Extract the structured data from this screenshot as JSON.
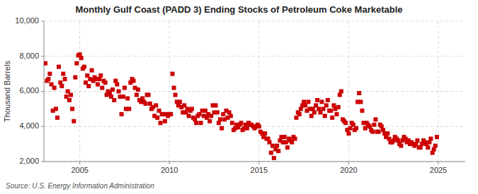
{
  "chart_data": {
    "type": "scatter",
    "title": "Monthly Gulf Coast (PADD 3) Ending Stocks of Petroleum Coke Marketable",
    "ylabel": "Thousand Barrels",
    "annotations": [
      "Source: U.S. Energy Information Administration"
    ],
    "color": "#cc0000",
    "marker": "square",
    "grid": true,
    "xlim": [
      2003.0,
      2026.5
    ],
    "xticks": [
      2005,
      2010,
      2015,
      2020,
      2025
    ],
    "ylim": [
      2000,
      10000
    ],
    "yticks": [
      {
        "value": 2000,
        "label": "2,000"
      },
      {
        "value": 4000,
        "label": "4,000"
      },
      {
        "value": 6000,
        "label": "6,000"
      },
      {
        "value": 8000,
        "label": "8,000"
      },
      {
        "value": 10000,
        "label": "10,000"
      }
    ],
    "x": [
      2003.08,
      2003.17,
      2003.25,
      2003.33,
      2003.42,
      2003.5,
      2003.58,
      2003.67,
      2003.75,
      2003.83,
      2003.92,
      2004.0,
      2004.08,
      2004.17,
      2004.25,
      2004.33,
      2004.42,
      2004.5,
      2004.58,
      2004.67,
      2004.75,
      2004.83,
      2004.92,
      2005.0,
      2005.08,
      2005.17,
      2005.25,
      2005.33,
      2005.42,
      2005.5,
      2005.58,
      2005.67,
      2005.75,
      2005.83,
      2005.92,
      2006.0,
      2006.08,
      2006.17,
      2006.25,
      2006.33,
      2006.42,
      2006.5,
      2006.58,
      2006.67,
      2006.75,
      2006.83,
      2006.92,
      2007.0,
      2007.08,
      2007.17,
      2007.25,
      2007.33,
      2007.42,
      2007.5,
      2007.58,
      2007.67,
      2007.75,
      2007.83,
      2007.92,
      2008.0,
      2008.08,
      2008.17,
      2008.25,
      2008.33,
      2008.42,
      2008.5,
      2008.58,
      2008.67,
      2008.75,
      2008.83,
      2008.92,
      2009.0,
      2009.08,
      2009.17,
      2009.25,
      2009.33,
      2009.42,
      2009.5,
      2009.58,
      2009.67,
      2009.75,
      2009.83,
      2009.92,
      2010.0,
      2010.08,
      2010.17,
      2010.25,
      2010.33,
      2010.42,
      2010.5,
      2010.58,
      2010.67,
      2010.75,
      2010.83,
      2010.92,
      2011.0,
      2011.08,
      2011.17,
      2011.25,
      2011.33,
      2011.42,
      2011.5,
      2011.58,
      2011.67,
      2011.75,
      2011.83,
      2011.92,
      2012.0,
      2012.08,
      2012.17,
      2012.25,
      2012.33,
      2012.42,
      2012.5,
      2012.58,
      2012.67,
      2012.75,
      2012.83,
      2012.92,
      2013.0,
      2013.08,
      2013.17,
      2013.25,
      2013.33,
      2013.42,
      2013.5,
      2013.58,
      2013.67,
      2013.75,
      2013.83,
      2013.92,
      2014.0,
      2014.08,
      2014.17,
      2014.25,
      2014.33,
      2014.42,
      2014.5,
      2014.58,
      2014.67,
      2014.75,
      2014.83,
      2014.92,
      2015.0,
      2015.08,
      2015.17,
      2015.25,
      2015.33,
      2015.42,
      2015.5,
      2015.58,
      2015.67,
      2015.75,
      2015.83,
      2015.92,
      2016.0,
      2016.08,
      2016.17,
      2016.25,
      2016.33,
      2016.42,
      2016.5,
      2016.58,
      2016.67,
      2016.75,
      2016.83,
      2016.92,
      2017.0,
      2017.08,
      2017.17,
      2017.25,
      2017.33,
      2017.42,
      2017.5,
      2017.58,
      2017.67,
      2017.75,
      2017.83,
      2017.92,
      2018.0,
      2018.08,
      2018.17,
      2018.25,
      2018.33,
      2018.42,
      2018.5,
      2018.58,
      2018.67,
      2018.75,
      2018.83,
      2018.92,
      2019.0,
      2019.08,
      2019.17,
      2019.25,
      2019.33,
      2019.42,
      2019.5,
      2019.58,
      2019.67,
      2019.75,
      2019.83,
      2019.92,
      2020.0,
      2020.08,
      2020.17,
      2020.25,
      2020.33,
      2020.42,
      2020.5,
      2020.58,
      2020.67,
      2020.75,
      2020.83,
      2020.92,
      2021.0,
      2021.08,
      2021.17,
      2021.25,
      2021.33,
      2021.42,
      2021.5,
      2021.58,
      2021.67,
      2021.75,
      2021.83,
      2021.92,
      2022.0,
      2022.08,
      2022.17,
      2022.25,
      2022.33,
      2022.42,
      2022.5,
      2022.58,
      2022.67,
      2022.75,
      2022.83,
      2022.92,
      2023.0,
      2023.08,
      2023.17,
      2023.25,
      2023.33,
      2023.42,
      2023.5,
      2023.58,
      2023.67,
      2023.75,
      2023.83,
      2023.92,
      2024.0,
      2024.08,
      2024.17,
      2024.25,
      2024.33,
      2024.42,
      2024.5,
      2024.58,
      2024.67,
      2024.75,
      2024.83,
      2024.92
    ],
    "values": [
      7600,
      6600,
      6700,
      7000,
      6400,
      4900,
      6200,
      5000,
      4500,
      7400,
      6500,
      6300,
      7000,
      6700,
      5700,
      6000,
      5500,
      5800,
      5000,
      4300,
      6800,
      7600,
      8050,
      8100,
      7900,
      7300,
      7400,
      6500,
      6900,
      6300,
      6700,
      7200,
      6600,
      6800,
      6700,
      6400,
      6700,
      6900,
      6200,
      6600,
      6500,
      5800,
      6000,
      5900,
      5700,
      6100,
      5500,
      6600,
      6400,
      6000,
      5700,
      4700,
      5700,
      6200,
      5000,
      5600,
      5000,
      6500,
      6700,
      6600,
      6200,
      5800,
      6100,
      5500,
      5400,
      5600,
      5400,
      5300,
      5800,
      5800,
      5300,
      5000,
      5100,
      4600,
      5200,
      4500,
      4900,
      4200,
      4700,
      4700,
      4300,
      4700,
      4600,
      4700,
      4700,
      7000,
      6200,
      5800,
      5400,
      5200,
      5400,
      5100,
      4800,
      5200,
      4800,
      5000,
      4600,
      4900,
      5000,
      4500,
      4400,
      4200,
      4600,
      4700,
      4200,
      4900,
      4600,
      4900,
      4500,
      4700,
      4300,
      4600,
      5200,
      4800,
      5200,
      4800,
      4200,
      4400,
      3900,
      4700,
      4400,
      4900,
      4500,
      4800,
      4600,
      4200,
      3800,
      3900,
      4100,
      3950,
      4100,
      4200,
      3800,
      3900,
      4100,
      3900,
      4200,
      4100,
      4100,
      4000,
      3900,
      4000,
      4100,
      4000,
      3700,
      3600,
      3400,
      3600,
      3300,
      3300,
      3100,
      2500,
      2900,
      2200,
      2700,
      2900,
      2600,
      3200,
      3400,
      3100,
      3400,
      3100,
      2800,
      3300,
      3200,
      3100,
      3400,
      3300,
      4500,
      4800,
      4700,
      5000,
      5200,
      5400,
      5200,
      4900,
      5400,
      5000,
      4600,
      5000,
      4800,
      5200,
      5500,
      5000,
      4800,
      5400,
      5000,
      4600,
      5200,
      5500,
      4900,
      4900,
      4500,
      5200,
      5000,
      4700,
      5100,
      5800,
      6000,
      4400,
      4300,
      4200,
      3800,
      3600,
      3900,
      4200,
      4100,
      3800,
      3900,
      5400,
      5900,
      5400,
      4900,
      4200,
      3900,
      4200,
      4100,
      4000,
      3800,
      3700,
      4100,
      4400,
      3700,
      3700,
      4100,
      4000,
      3800,
      3600,
      3400,
      3600,
      3300,
      3100,
      3100,
      3200,
      3400,
      3300,
      3200,
      3000,
      2900,
      3200,
      3400,
      3300,
      3100,
      3200,
      3000,
      3100,
      3000,
      2900,
      3000,
      3200,
      2800,
      2800,
      3000,
      3200,
      3100,
      3000,
      2800,
      3100,
      3300,
      2500,
      2700,
      2900,
      3400
    ]
  }
}
